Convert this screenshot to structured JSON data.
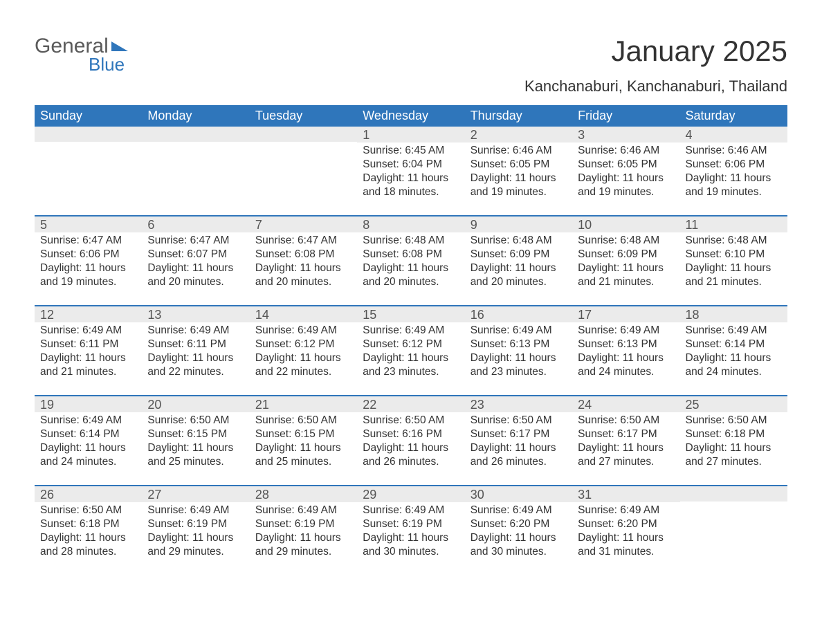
{
  "logo": {
    "word1": "General",
    "word2": "Blue",
    "flag_color": "#2f76bb"
  },
  "title": "January 2025",
  "location": "Kanchanaburi, Kanchanaburi, Thailand",
  "colors": {
    "header_bg": "#2f76bb",
    "header_text": "#ffffff",
    "daynum_bg": "#ebebeb",
    "daynum_text": "#555555",
    "body_text": "#333333",
    "row_border": "#2f76bb",
    "background": "#ffffff"
  },
  "typography": {
    "title_fontsize": 42,
    "subtitle_fontsize": 22,
    "dow_fontsize": 18,
    "daynum_fontsize": 18,
    "body_fontsize": 15.5,
    "font_family": "Arial"
  },
  "layout": {
    "week_row_min_height": 128,
    "cell_count_per_row": 7,
    "total_weeks": 5
  },
  "days_of_week": [
    "Sunday",
    "Monday",
    "Tuesday",
    "Wednesday",
    "Thursday",
    "Friday",
    "Saturday"
  ],
  "weeks": [
    [
      {
        "num": "",
        "sunrise": "",
        "sunset": "",
        "daylight1": "",
        "daylight2": ""
      },
      {
        "num": "",
        "sunrise": "",
        "sunset": "",
        "daylight1": "",
        "daylight2": ""
      },
      {
        "num": "",
        "sunrise": "",
        "sunset": "",
        "daylight1": "",
        "daylight2": ""
      },
      {
        "num": "1",
        "sunrise": "Sunrise: 6:45 AM",
        "sunset": "Sunset: 6:04 PM",
        "daylight1": "Daylight: 11 hours",
        "daylight2": "and 18 minutes."
      },
      {
        "num": "2",
        "sunrise": "Sunrise: 6:46 AM",
        "sunset": "Sunset: 6:05 PM",
        "daylight1": "Daylight: 11 hours",
        "daylight2": "and 19 minutes."
      },
      {
        "num": "3",
        "sunrise": "Sunrise: 6:46 AM",
        "sunset": "Sunset: 6:05 PM",
        "daylight1": "Daylight: 11 hours",
        "daylight2": "and 19 minutes."
      },
      {
        "num": "4",
        "sunrise": "Sunrise: 6:46 AM",
        "sunset": "Sunset: 6:06 PM",
        "daylight1": "Daylight: 11 hours",
        "daylight2": "and 19 minutes."
      }
    ],
    [
      {
        "num": "5",
        "sunrise": "Sunrise: 6:47 AM",
        "sunset": "Sunset: 6:06 PM",
        "daylight1": "Daylight: 11 hours",
        "daylight2": "and 19 minutes."
      },
      {
        "num": "6",
        "sunrise": "Sunrise: 6:47 AM",
        "sunset": "Sunset: 6:07 PM",
        "daylight1": "Daylight: 11 hours",
        "daylight2": "and 20 minutes."
      },
      {
        "num": "7",
        "sunrise": "Sunrise: 6:47 AM",
        "sunset": "Sunset: 6:08 PM",
        "daylight1": "Daylight: 11 hours",
        "daylight2": "and 20 minutes."
      },
      {
        "num": "8",
        "sunrise": "Sunrise: 6:48 AM",
        "sunset": "Sunset: 6:08 PM",
        "daylight1": "Daylight: 11 hours",
        "daylight2": "and 20 minutes."
      },
      {
        "num": "9",
        "sunrise": "Sunrise: 6:48 AM",
        "sunset": "Sunset: 6:09 PM",
        "daylight1": "Daylight: 11 hours",
        "daylight2": "and 20 minutes."
      },
      {
        "num": "10",
        "sunrise": "Sunrise: 6:48 AM",
        "sunset": "Sunset: 6:09 PM",
        "daylight1": "Daylight: 11 hours",
        "daylight2": "and 21 minutes."
      },
      {
        "num": "11",
        "sunrise": "Sunrise: 6:48 AM",
        "sunset": "Sunset: 6:10 PM",
        "daylight1": "Daylight: 11 hours",
        "daylight2": "and 21 minutes."
      }
    ],
    [
      {
        "num": "12",
        "sunrise": "Sunrise: 6:49 AM",
        "sunset": "Sunset: 6:11 PM",
        "daylight1": "Daylight: 11 hours",
        "daylight2": "and 21 minutes."
      },
      {
        "num": "13",
        "sunrise": "Sunrise: 6:49 AM",
        "sunset": "Sunset: 6:11 PM",
        "daylight1": "Daylight: 11 hours",
        "daylight2": "and 22 minutes."
      },
      {
        "num": "14",
        "sunrise": "Sunrise: 6:49 AM",
        "sunset": "Sunset: 6:12 PM",
        "daylight1": "Daylight: 11 hours",
        "daylight2": "and 22 minutes."
      },
      {
        "num": "15",
        "sunrise": "Sunrise: 6:49 AM",
        "sunset": "Sunset: 6:12 PM",
        "daylight1": "Daylight: 11 hours",
        "daylight2": "and 23 minutes."
      },
      {
        "num": "16",
        "sunrise": "Sunrise: 6:49 AM",
        "sunset": "Sunset: 6:13 PM",
        "daylight1": "Daylight: 11 hours",
        "daylight2": "and 23 minutes."
      },
      {
        "num": "17",
        "sunrise": "Sunrise: 6:49 AM",
        "sunset": "Sunset: 6:13 PM",
        "daylight1": "Daylight: 11 hours",
        "daylight2": "and 24 minutes."
      },
      {
        "num": "18",
        "sunrise": "Sunrise: 6:49 AM",
        "sunset": "Sunset: 6:14 PM",
        "daylight1": "Daylight: 11 hours",
        "daylight2": "and 24 minutes."
      }
    ],
    [
      {
        "num": "19",
        "sunrise": "Sunrise: 6:49 AM",
        "sunset": "Sunset: 6:14 PM",
        "daylight1": "Daylight: 11 hours",
        "daylight2": "and 24 minutes."
      },
      {
        "num": "20",
        "sunrise": "Sunrise: 6:50 AM",
        "sunset": "Sunset: 6:15 PM",
        "daylight1": "Daylight: 11 hours",
        "daylight2": "and 25 minutes."
      },
      {
        "num": "21",
        "sunrise": "Sunrise: 6:50 AM",
        "sunset": "Sunset: 6:15 PM",
        "daylight1": "Daylight: 11 hours",
        "daylight2": "and 25 minutes."
      },
      {
        "num": "22",
        "sunrise": "Sunrise: 6:50 AM",
        "sunset": "Sunset: 6:16 PM",
        "daylight1": "Daylight: 11 hours",
        "daylight2": "and 26 minutes."
      },
      {
        "num": "23",
        "sunrise": "Sunrise: 6:50 AM",
        "sunset": "Sunset: 6:17 PM",
        "daylight1": "Daylight: 11 hours",
        "daylight2": "and 26 minutes."
      },
      {
        "num": "24",
        "sunrise": "Sunrise: 6:50 AM",
        "sunset": "Sunset: 6:17 PM",
        "daylight1": "Daylight: 11 hours",
        "daylight2": "and 27 minutes."
      },
      {
        "num": "25",
        "sunrise": "Sunrise: 6:50 AM",
        "sunset": "Sunset: 6:18 PM",
        "daylight1": "Daylight: 11 hours",
        "daylight2": "and 27 minutes."
      }
    ],
    [
      {
        "num": "26",
        "sunrise": "Sunrise: 6:50 AM",
        "sunset": "Sunset: 6:18 PM",
        "daylight1": "Daylight: 11 hours",
        "daylight2": "and 28 minutes."
      },
      {
        "num": "27",
        "sunrise": "Sunrise: 6:49 AM",
        "sunset": "Sunset: 6:19 PM",
        "daylight1": "Daylight: 11 hours",
        "daylight2": "and 29 minutes."
      },
      {
        "num": "28",
        "sunrise": "Sunrise: 6:49 AM",
        "sunset": "Sunset: 6:19 PM",
        "daylight1": "Daylight: 11 hours",
        "daylight2": "and 29 minutes."
      },
      {
        "num": "29",
        "sunrise": "Sunrise: 6:49 AM",
        "sunset": "Sunset: 6:19 PM",
        "daylight1": "Daylight: 11 hours",
        "daylight2": "and 30 minutes."
      },
      {
        "num": "30",
        "sunrise": "Sunrise: 6:49 AM",
        "sunset": "Sunset: 6:20 PM",
        "daylight1": "Daylight: 11 hours",
        "daylight2": "and 30 minutes."
      },
      {
        "num": "31",
        "sunrise": "Sunrise: 6:49 AM",
        "sunset": "Sunset: 6:20 PM",
        "daylight1": "Daylight: 11 hours",
        "daylight2": "and 31 minutes."
      },
      {
        "num": "",
        "sunrise": "",
        "sunset": "",
        "daylight1": "",
        "daylight2": ""
      }
    ]
  ]
}
